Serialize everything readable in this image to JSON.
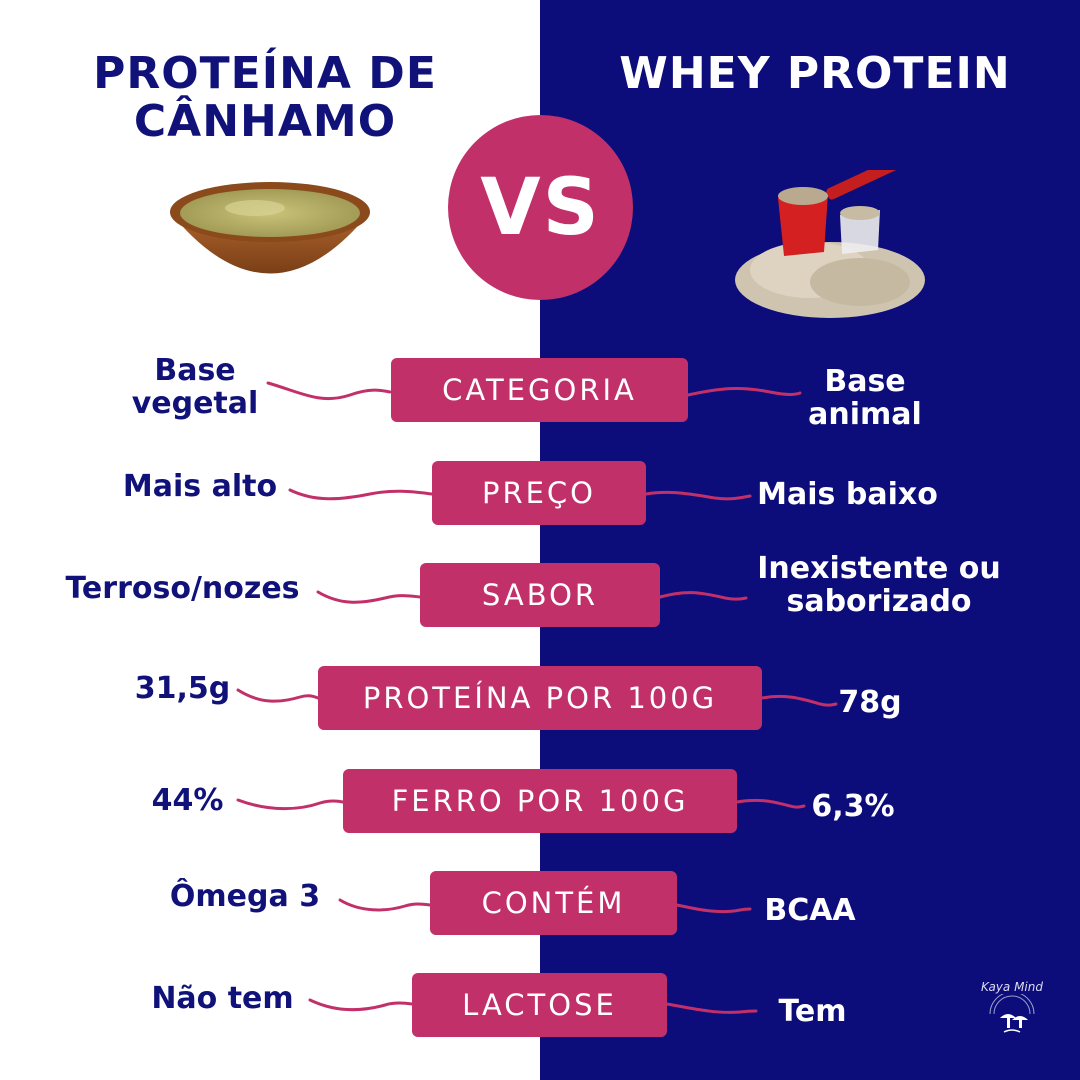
{
  "titles": {
    "left": "PROTEÍNA DE CÂNHAMO",
    "right": "WHEY PROTEIN",
    "vs": "VS"
  },
  "colors": {
    "navy": "#0c0c7a",
    "text_navy": "#10127a",
    "accent": "#c2306a",
    "white": "#ffffff"
  },
  "rows": [
    {
      "label": "CATEGORIA",
      "left": "Base vegetal",
      "right": "Base animal"
    },
    {
      "label": "PREÇO",
      "left": "Mais alto",
      "right": "Mais baixo"
    },
    {
      "label": "SABOR",
      "left": "Terroso/nozes",
      "right": "Inexistente ou saborizado"
    },
    {
      "label": "PROTEÍNA POR 100G",
      "left": "31,5g",
      "right": "78g"
    },
    {
      "label": "FERRO POR 100G",
      "left": "44%",
      "right": "6,3%"
    },
    {
      "label": "CONTÉM",
      "left": "Ômega 3",
      "right": "BCAA"
    },
    {
      "label": "LACTOSE",
      "left": "Não tem",
      "right": "Tem"
    }
  ],
  "brand": {
    "name": "Kaya Mind",
    "icon": "mushroom-logo-icon"
  },
  "images": {
    "left": "hemp-powder-bowl",
    "right": "whey-powder-scoop"
  }
}
